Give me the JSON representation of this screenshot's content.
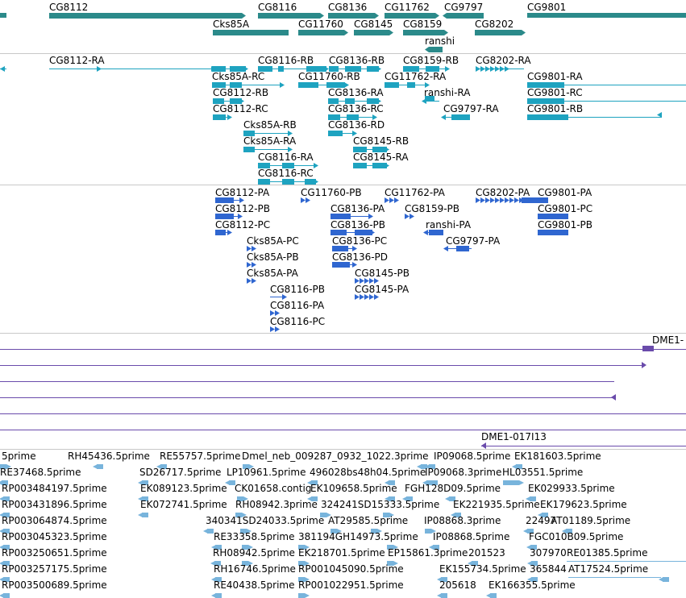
{
  "colors": {
    "gene": "#2b8a8a",
    "transcript": "#1ea3c0",
    "protein": "#2f66d0",
    "clone": "#6a4bab",
    "est": "#78b4dc",
    "divider": "#c8c8c8"
  },
  "tracks": {
    "genes": {
      "labels": [
        "CG8112",
        "CG8116",
        "CG8136",
        "CG11762",
        "CG9797",
        "CG9801",
        "Cks85A",
        "CG11760",
        "CG8145",
        "CG8159",
        "CG8202",
        "ranshi"
      ]
    },
    "transcripts": {
      "labels": [
        "CG8112-RA",
        "CG8116-RB",
        "CG8136-RB",
        "CG8159-RB",
        "CG8202-RA",
        "Cks85A-RC",
        "CG11760-RB",
        "CG11762-RA",
        "CG9801-RA",
        "CG8112-RB",
        "CG8136-RA",
        "ranshi-RA",
        "CG9801-RC",
        "CG8112-RC",
        "CG8136-RC",
        "CG9797-RA",
        "CG9801-RB",
        "Cks85A-RB",
        "CG8136-RD",
        "Cks85A-RA",
        "CG8145-RB",
        "CG8116-RA",
        "CG8145-RA",
        "CG8116-RC"
      ]
    },
    "proteins": {
      "labels": [
        "CG8112-PA",
        "CG11760-PB",
        "CG11762-PA",
        "CG8202-PA",
        "CG9801-PA",
        "CG8112-PB",
        "CG8136-PA",
        "CG8159-PB",
        "CG9801-PC",
        "CG8112-PC",
        "CG8136-PB",
        "ranshi-PA",
        "CG9801-PB",
        "Cks85A-PC",
        "CG8136-PC",
        "CG9797-PA",
        "Cks85A-PB",
        "CG8136-PD",
        "Cks85A-PA",
        "CG8145-PB",
        "CG8116-PB",
        "CG8145-PA",
        "CG8116-PA",
        "CG8116-PC"
      ]
    },
    "clones": {
      "labels": [
        "DME1-",
        "DME1-017I13"
      ]
    },
    "ests": {
      "labels": [
        "5prime",
        "RH45436.5prime",
        "RE55757.5prime",
        "Dmel_neb_009287_0932_1022.3prime",
        "IP09068.5prime",
        "EK181603.5prime",
        "RE37468.5prime",
        "SD26717.5prime",
        "LP10961.5prime",
        "496028bs48h04.5prime",
        "IP09068.3prime",
        "HL03551.5prime",
        "RP003484197.5prime",
        "EK089123.5prime",
        "CK01658.contig",
        "EK109658.5prime",
        "FGH128D09.5prime",
        "EK029933.5prime",
        "RP003431896.5prime",
        "EK072741.5prime",
        "RH08942.3prime",
        "324241SD15333.5prime",
        "EK221935.5prime",
        "EK179623.5prime",
        "RP003064874.5prime",
        "340341SD24033.5prime",
        "AT29585.5prime",
        "IP08868.3prime",
        "22497",
        "AT01189.5prime",
        "RP003045323.5prime",
        "RE33358.5prime",
        "381194GH14973.5prime",
        "IP08868.5prime",
        "FGC010B09.5prime",
        "RP003250651.5prime",
        "RH08942.5prime",
        "EK218701.5prime",
        "EP15861.3prime",
        "201523",
        "307970",
        "RE01385.5prime",
        "RP003257175.5prime",
        "RH16746.5prime",
        "RP001045090.5prime",
        "EK155734.5prime",
        "365844",
        "AT17524.5prime",
        "RP003500689.5prime",
        "RE40438.5prime",
        "RP001022951.5prime",
        "205618",
        "EK166355.5prime"
      ]
    }
  }
}
